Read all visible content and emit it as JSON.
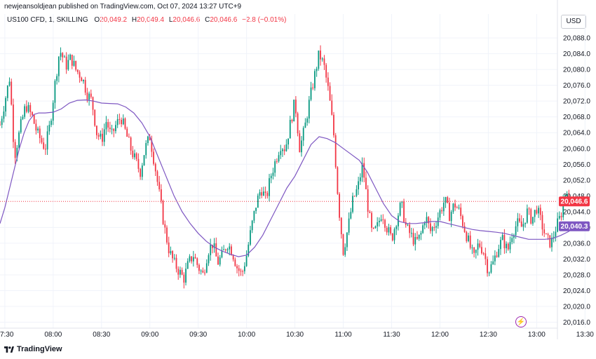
{
  "header": {
    "published": "newjeansoldjean published on TradingView.com, Oct 07, 2024 13:27 UTC+9"
  },
  "legend": {
    "symbol": "US100 CFD, 1, SKILLING",
    "open_label": "O",
    "open": "20,049.2",
    "high_label": "H",
    "high": "20,049.4",
    "low_label": "L",
    "low": "20,046.6",
    "close_label": "C",
    "close": "20,046.6",
    "change": "−2.8 (−0.01%)"
  },
  "currency_button": "USD",
  "footer": {
    "brand": "TradingView"
  },
  "colors": {
    "up": "#089981",
    "down": "#f23645",
    "ma": "#7e57c2",
    "grid": "#f0f3fa"
  },
  "chart_data": {
    "type": "candlestick",
    "title": "",
    "ylim": [
      20014.5,
      20090.5
    ],
    "yticks": [
      "20,016.0",
      "20,020.0",
      "20,024.0",
      "20,028.0",
      "20,032.0",
      "20,036.0",
      "20,040.0",
      "20,044.0",
      "20,048.0",
      "20,052.0",
      "20,056.0",
      "20,060.0",
      "20,064.0",
      "20,068.0",
      "20,072.0",
      "20,076.0",
      "20,080.0",
      "20,084.0",
      "20,088.0"
    ],
    "ytick_values": [
      20016,
      20020,
      20024,
      20028,
      20032,
      20036,
      20040,
      20044,
      20048,
      20052,
      20056,
      20060,
      20064,
      20068,
      20072,
      20076,
      20080,
      20084,
      20088
    ],
    "xticks": [
      "07:30",
      "08:00",
      "08:30",
      "09:00",
      "09:30",
      "10:00",
      "10:30",
      "11:00",
      "11:30",
      "12:00",
      "12:30",
      "13:00",
      "13:30"
    ],
    "xtick_minutes": [
      450,
      480,
      510,
      540,
      570,
      600,
      630,
      660,
      690,
      720,
      750,
      780,
      810
    ],
    "xlim": [
      447,
      819
    ],
    "price_close": 20046.6,
    "price_close_label": "20,046.6",
    "ma_last": 20040.3,
    "ma_last_label": "20,040.3",
    "path": [
      [
        447,
        20066
      ],
      [
        450,
        20072
      ],
      [
        453,
        20078
      ],
      [
        456,
        20058
      ],
      [
        460,
        20066
      ],
      [
        463,
        20071
      ],
      [
        467,
        20068
      ],
      [
        470,
        20064
      ],
      [
        475,
        20060
      ],
      [
        478,
        20066
      ],
      [
        481,
        20076
      ],
      [
        484,
        20085
      ],
      [
        488,
        20081
      ],
      [
        491,
        20083
      ],
      [
        494,
        20080
      ],
      [
        498,
        20078
      ],
      [
        501,
        20074
      ],
      [
        504,
        20072
      ],
      [
        507,
        20064
      ],
      [
        510,
        20062
      ],
      [
        513,
        20067
      ],
      [
        516,
        20063
      ],
      [
        519,
        20066
      ],
      [
        522,
        20068
      ],
      [
        525,
        20064
      ],
      [
        528,
        20060
      ],
      [
        531,
        20057
      ],
      [
        534,
        20054
      ],
      [
        537,
        20060
      ],
      [
        540,
        20063
      ],
      [
        543,
        20056
      ],
      [
        546,
        20048
      ],
      [
        549,
        20040
      ],
      [
        552,
        20034
      ],
      [
        555,
        20031
      ],
      [
        558,
        20029
      ],
      [
        561,
        20027
      ],
      [
        564,
        20031
      ],
      [
        567,
        20033
      ],
      [
        570,
        20030
      ],
      [
        573,
        20028
      ],
      [
        576,
        20034
      ],
      [
        579,
        20036
      ],
      [
        582,
        20031
      ],
      [
        585,
        20033
      ],
      [
        588,
        20036
      ],
      [
        591,
        20034
      ],
      [
        594,
        20030
      ],
      [
        597,
        20028
      ],
      [
        600,
        20033
      ],
      [
        603,
        20040
      ],
      [
        606,
        20046
      ],
      [
        609,
        20050
      ],
      [
        612,
        20047
      ],
      [
        615,
        20053
      ],
      [
        618,
        20057
      ],
      [
        621,
        20061
      ],
      [
        624,
        20060
      ],
      [
        627,
        20066
      ],
      [
        630,
        20072
      ],
      [
        633,
        20060
      ],
      [
        636,
        20065
      ],
      [
        639,
        20072
      ],
      [
        642,
        20078
      ],
      [
        645,
        20084
      ],
      [
        648,
        20081
      ],
      [
        651,
        20074
      ],
      [
        654,
        20064
      ],
      [
        657,
        20046
      ],
      [
        660,
        20034
      ],
      [
        663,
        20040
      ],
      [
        666,
        20047
      ],
      [
        669,
        20050
      ],
      [
        672,
        20056
      ],
      [
        675,
        20046
      ],
      [
        678,
        20038
      ],
      [
        681,
        20040
      ],
      [
        684,
        20044
      ],
      [
        687,
        20040
      ],
      [
        690,
        20037
      ],
      [
        693,
        20042
      ],
      [
        696,
        20046
      ],
      [
        699,
        20040
      ],
      [
        702,
        20038
      ],
      [
        705,
        20036
      ],
      [
        708,
        20038
      ],
      [
        711,
        20043
      ],
      [
        714,
        20039
      ],
      [
        717,
        20041
      ],
      [
        720,
        20044
      ],
      [
        723,
        20047
      ],
      [
        726,
        20043
      ],
      [
        729,
        20046
      ],
      [
        732,
        20044
      ],
      [
        735,
        20040
      ],
      [
        738,
        20036
      ],
      [
        741,
        20032
      ],
      [
        744,
        20036
      ],
      [
        747,
        20034
      ],
      [
        750,
        20029
      ],
      [
        753,
        20031
      ],
      [
        756,
        20035
      ],
      [
        759,
        20037
      ],
      [
        762,
        20034
      ],
      [
        765,
        20039
      ],
      [
        768,
        20041
      ],
      [
        771,
        20040
      ],
      [
        774,
        20044
      ],
      [
        777,
        20042
      ],
      [
        780,
        20045
      ],
      [
        783,
        20041
      ],
      [
        786,
        20037
      ],
      [
        789,
        20036
      ],
      [
        792,
        20040
      ],
      [
        795,
        20043
      ],
      [
        797,
        20048
      ],
      [
        799,
        20050
      ],
      [
        800,
        20046.6
      ]
    ],
    "ma": [
      [
        447,
        20041
      ],
      [
        450,
        20045
      ],
      [
        453,
        20050
      ],
      [
        456,
        20055
      ],
      [
        459,
        20060
      ],
      [
        462,
        20064
      ],
      [
        465,
        20067
      ],
      [
        468,
        20068.6
      ],
      [
        471,
        20069
      ],
      [
        475,
        20069
      ],
      [
        480,
        20069.2
      ],
      [
        485,
        20070
      ],
      [
        490,
        20071.5
      ],
      [
        495,
        20072.2
      ],
      [
        500,
        20072.3
      ],
      [
        505,
        20072
      ],
      [
        510,
        20071.5
      ],
      [
        515,
        20071.4
      ],
      [
        520,
        20071.3
      ],
      [
        525,
        20070.5
      ],
      [
        530,
        20069
      ],
      [
        535,
        20066.5
      ],
      [
        540,
        20063
      ],
      [
        545,
        20058
      ],
      [
        550,
        20053
      ],
      [
        555,
        20048
      ],
      [
        560,
        20044
      ],
      [
        565,
        20041
      ],
      [
        570,
        20038.5
      ],
      [
        575,
        20036.5
      ],
      [
        580,
        20035
      ],
      [
        585,
        20034
      ],
      [
        590,
        20033.2
      ],
      [
        595,
        20032.6
      ],
      [
        600,
        20033
      ],
      [
        605,
        20035
      ],
      [
        610,
        20038
      ],
      [
        615,
        20042
      ],
      [
        620,
        20046
      ],
      [
        625,
        20050
      ],
      [
        630,
        20053
      ],
      [
        635,
        20057
      ],
      [
        640,
        20061
      ],
      [
        645,
        20063
      ],
      [
        650,
        20062.5
      ],
      [
        655,
        20061.5
      ],
      [
        660,
        20060
      ],
      [
        665,
        20058.5
      ],
      [
        670,
        20057
      ],
      [
        675,
        20054
      ],
      [
        680,
        20050
      ],
      [
        685,
        20046
      ],
      [
        690,
        20043
      ],
      [
        695,
        20041.5
      ],
      [
        700,
        20041
      ],
      [
        705,
        20041
      ],
      [
        710,
        20041.2
      ],
      [
        715,
        20041.5
      ],
      [
        720,
        20041.5
      ],
      [
        725,
        20041
      ],
      [
        730,
        20040.5
      ],
      [
        735,
        20040
      ],
      [
        740,
        20039.5
      ],
      [
        745,
        20039.2
      ],
      [
        750,
        20039
      ],
      [
        755,
        20038.8
      ],
      [
        760,
        20038.5
      ],
      [
        765,
        20038
      ],
      [
        770,
        20037.5
      ],
      [
        775,
        20037
      ],
      [
        780,
        20037
      ],
      [
        785,
        20037
      ],
      [
        790,
        20037.2
      ],
      [
        795,
        20038
      ],
      [
        800,
        20039
      ],
      [
        803,
        20040.3
      ]
    ]
  }
}
